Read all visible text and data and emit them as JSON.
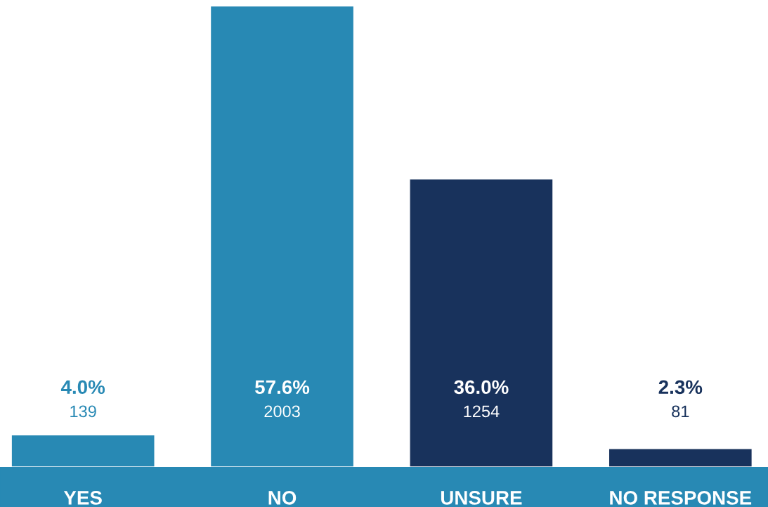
{
  "chart_data": {
    "type": "bar",
    "categories": [
      "YES",
      "NO",
      "UNSURE",
      "NO RESPONSE"
    ],
    "values": [
      4.0,
      57.6,
      36.0,
      2.3
    ],
    "colors": [
      "#2889b4",
      "#2889b4",
      "#18325c",
      "#18325c"
    ],
    "value_labels": [
      "4.0%\n139",
      "57.6%\n2003",
      "36.0%\n1254",
      "2.3%\n81"
    ],
    "grid": false,
    "legend": false
  }
}
